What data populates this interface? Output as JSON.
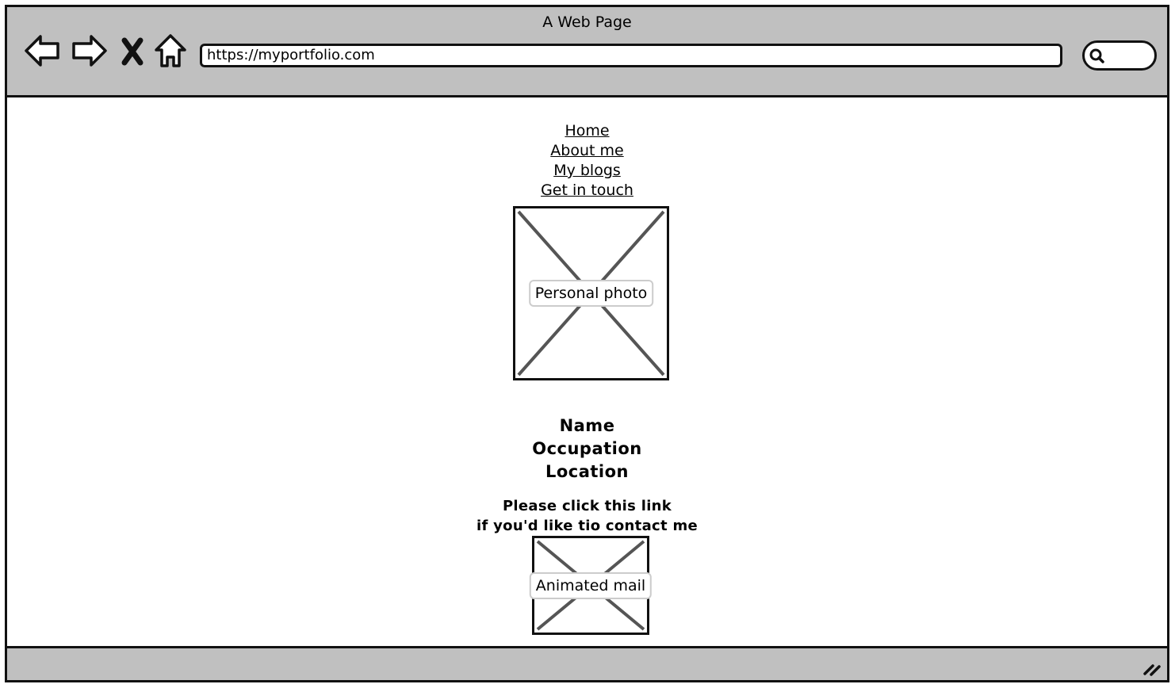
{
  "window": {
    "title": "A Web Page"
  },
  "toolbar": {
    "back_icon": "back-arrow-icon",
    "forward_icon": "forward-arrow-icon",
    "stop_icon": "close-icon",
    "home_icon": "home-icon",
    "url": "https://myportfolio.com",
    "search_icon": "search-icon"
  },
  "nav": {
    "links": [
      "Home",
      "About me",
      "My blogs",
      "Get in touch"
    ]
  },
  "photo": {
    "label": "Personal photo"
  },
  "profile": {
    "name": "Name",
    "occupation": "Occupation",
    "location": "Location"
  },
  "contact": {
    "line1": "Please click this link",
    "line2": "if you'd like tio contact me"
  },
  "mail": {
    "label": "Animated mail"
  },
  "colors": {
    "chrome": "#c0c0c0",
    "border": "#111111",
    "placeholder_cross": "#555555"
  }
}
